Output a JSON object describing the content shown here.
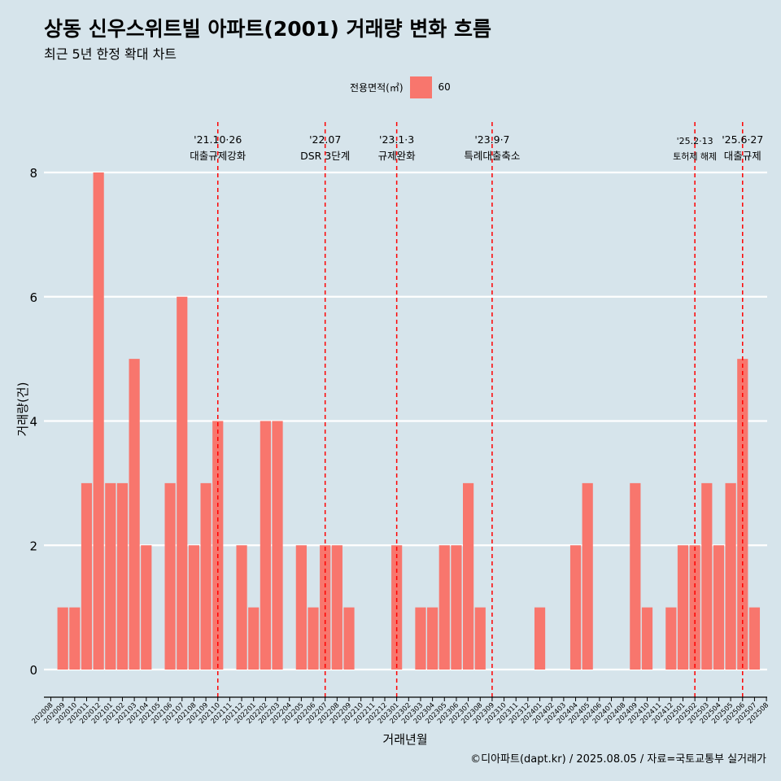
{
  "title": "상동 신우스위트빌 아파트(2001) 거래량 변화 흐름",
  "subtitle": "최근 5년 한정 확대 차트",
  "legend": {
    "title": "전용면적(㎡)",
    "label": "60",
    "color": "#f8766d"
  },
  "footer": "©디아파트(dapt.kr) / 2025.08.05 / 자료=국토교통부 실거래가",
  "chart_data": {
    "type": "bar",
    "xlabel": "거래년월",
    "ylabel": "거래량(건)",
    "ylim": [
      0,
      8
    ],
    "yticks": [
      0,
      2,
      4,
      6,
      8
    ],
    "grid": true,
    "legend_position": "top",
    "categories": [
      "202008",
      "202009",
      "202010",
      "202011",
      "202012",
      "202101",
      "202102",
      "202103",
      "202104",
      "202105",
      "202106",
      "202107",
      "202108",
      "202109",
      "202110",
      "202111",
      "202112",
      "202201",
      "202202",
      "202203",
      "202204",
      "202205",
      "202206",
      "202207",
      "202208",
      "202209",
      "202210",
      "202211",
      "202212",
      "202301",
      "202302",
      "202303",
      "202304",
      "202305",
      "202306",
      "202307",
      "202308",
      "202309",
      "202310",
      "202311",
      "202312",
      "202401",
      "202402",
      "202403",
      "202404",
      "202405",
      "202406",
      "202407",
      "202408",
      "202409",
      "202410",
      "202411",
      "202412",
      "202501",
      "202502",
      "202503",
      "202504",
      "202505",
      "202506",
      "202507",
      "202508"
    ],
    "series": [
      {
        "name": "60",
        "values": [
          0,
          1,
          1,
          3,
          8,
          3,
          3,
          5,
          2,
          0,
          3,
          6,
          2,
          3,
          4,
          0,
          2,
          1,
          4,
          4,
          0,
          2,
          1,
          2,
          2,
          1,
          0,
          0,
          0,
          2,
          0,
          1,
          1,
          2,
          2,
          3,
          1,
          0,
          0,
          0,
          0,
          1,
          0,
          0,
          2,
          3,
          0,
          0,
          0,
          3,
          1,
          0,
          1,
          2,
          2,
          3,
          2,
          3,
          5,
          1,
          0
        ]
      }
    ],
    "annotations": [
      {
        "x": "202110",
        "line1": "'21.10·26",
        "line2": "대출규제강화"
      },
      {
        "x": "202207",
        "line1": "'22.07",
        "line2": "DSR 3단계"
      },
      {
        "x": "202301",
        "line1": "'23.1·3",
        "line2": "규제완화"
      },
      {
        "x": "202309",
        "line1": "'23.9·7",
        "line2": "특례대출축소"
      },
      {
        "x": "202502",
        "line1": "'25.2·13",
        "line2": "토허제 해제"
      },
      {
        "x": "202506",
        "line1": "'25.6·27",
        "line2": "대출규제"
      }
    ]
  }
}
